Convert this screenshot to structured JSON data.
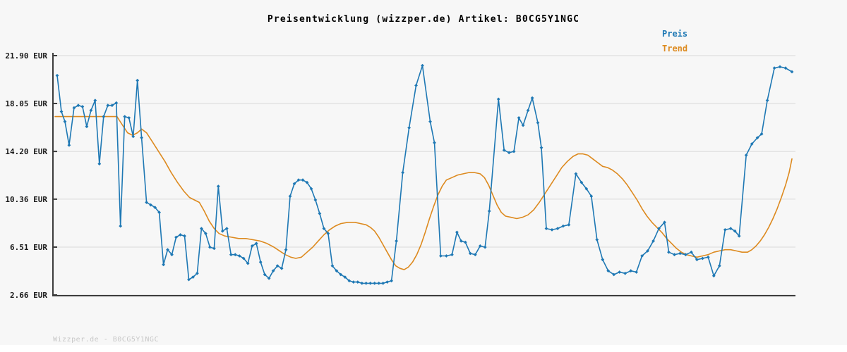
{
  "title": "Preisentwicklung (wizzper.de) Artikel: B0CG5Y1NGC",
  "legend": {
    "preis": "Preis",
    "trend": "Trend"
  },
  "watermark": "Wizzper.de - B0CG5Y1NGC",
  "colors": {
    "price": "#1e78b4",
    "trend": "#dd8a1f",
    "grid": "#d8d8d8",
    "axis": "#3c3c3c",
    "background": "#f7f7f7",
    "footer": "#ffffff",
    "title": "#000000",
    "tick_label": "#1a1a1a",
    "watermark": "#c8c8c8"
  },
  "chart_data": {
    "type": "line",
    "title": "Preisentwicklung (wizzper.de) Artikel: B0CG5Y1NGC",
    "ylabel": "EUR",
    "ylim": [
      2.66,
      21.9
    ],
    "yticks": [
      21.9,
      18.05,
      14.2,
      10.36,
      6.51,
      2.66
    ],
    "ytick_labels": [
      "21.90 EUR",
      "18.05 EUR",
      "14.20 EUR",
      "10.36 EUR",
      "6.51 EUR",
      "2.66 EUR"
    ],
    "x_range": [
      0,
      1047
    ],
    "x_tick_labels": [],
    "grid": "horizontal",
    "legend_position": "top-right",
    "series": [
      {
        "name": "Preis",
        "color": "#1e78b4",
        "marker": "diamond",
        "points": [
          [
            3,
            20.3
          ],
          [
            9,
            17.4
          ],
          [
            14,
            16.6
          ],
          [
            20,
            14.7
          ],
          [
            27,
            17.7
          ],
          [
            33,
            17.9
          ],
          [
            39,
            17.8
          ],
          [
            45,
            16.2
          ],
          [
            51,
            17.5
          ],
          [
            57,
            18.3
          ],
          [
            63,
            13.2
          ],
          [
            69,
            17.0
          ],
          [
            75,
            17.9
          ],
          [
            81,
            17.9
          ],
          [
            87,
            18.1
          ],
          [
            93,
            8.2
          ],
          [
            99,
            17.0
          ],
          [
            105,
            16.9
          ],
          [
            111,
            15.4
          ],
          [
            117,
            19.9
          ],
          [
            123,
            15.3
          ],
          [
            130,
            10.1
          ],
          [
            136,
            9.9
          ],
          [
            142,
            9.7
          ],
          [
            148,
            9.3
          ],
          [
            154,
            5.1
          ],
          [
            160,
            6.3
          ],
          [
            166,
            5.9
          ],
          [
            172,
            7.3
          ],
          [
            178,
            7.5
          ],
          [
            184,
            7.4
          ],
          [
            190,
            3.9
          ],
          [
            196,
            4.1
          ],
          [
            202,
            4.4
          ],
          [
            208,
            8.0
          ],
          [
            214,
            7.6
          ],
          [
            220,
            6.5
          ],
          [
            226,
            6.4
          ],
          [
            232,
            11.4
          ],
          [
            238,
            7.8
          ],
          [
            244,
            8.0
          ],
          [
            250,
            5.9
          ],
          [
            256,
            5.9
          ],
          [
            262,
            5.8
          ],
          [
            268,
            5.6
          ],
          [
            274,
            5.2
          ],
          [
            280,
            6.6
          ],
          [
            286,
            6.8
          ],
          [
            292,
            5.3
          ],
          [
            298,
            4.3
          ],
          [
            304,
            4.0
          ],
          [
            310,
            4.6
          ],
          [
            316,
            5.0
          ],
          [
            322,
            4.8
          ],
          [
            328,
            6.3
          ],
          [
            334,
            10.6
          ],
          [
            340,
            11.6
          ],
          [
            346,
            11.9
          ],
          [
            352,
            11.9
          ],
          [
            358,
            11.7
          ],
          [
            364,
            11.2
          ],
          [
            370,
            10.3
          ],
          [
            376,
            9.2
          ],
          [
            382,
            8.0
          ],
          [
            388,
            7.6
          ],
          [
            394,
            5.0
          ],
          [
            400,
            4.6
          ],
          [
            406,
            4.3
          ],
          [
            412,
            4.1
          ],
          [
            418,
            3.8
          ],
          [
            424,
            3.7
          ],
          [
            430,
            3.7
          ],
          [
            436,
            3.6
          ],
          [
            442,
            3.6
          ],
          [
            448,
            3.6
          ],
          [
            454,
            3.6
          ],
          [
            460,
            3.6
          ],
          [
            466,
            3.6
          ],
          [
            472,
            3.7
          ],
          [
            478,
            3.8
          ],
          [
            485,
            7.0
          ],
          [
            494,
            12.5
          ],
          [
            503,
            16.1
          ],
          [
            513,
            19.5
          ],
          [
            522,
            21.1
          ],
          [
            533,
            16.6
          ],
          [
            539,
            14.9
          ],
          [
            548,
            5.8
          ],
          [
            556,
            5.8
          ],
          [
            564,
            5.9
          ],
          [
            571,
            7.7
          ],
          [
            577,
            7.0
          ],
          [
            583,
            6.9
          ],
          [
            590,
            6.0
          ],
          [
            597,
            5.9
          ],
          [
            604,
            6.6
          ],
          [
            611,
            6.5
          ],
          [
            617,
            9.4
          ],
          [
            630,
            18.4
          ],
          [
            638,
            14.3
          ],
          [
            645,
            14.1
          ],
          [
            652,
            14.2
          ],
          [
            659,
            16.9
          ],
          [
            665,
            16.3
          ],
          [
            672,
            17.5
          ],
          [
            678,
            18.5
          ],
          [
            686,
            16.5
          ],
          [
            691,
            14.5
          ],
          [
            698,
            8.0
          ],
          [
            706,
            7.9
          ],
          [
            714,
            8.0
          ],
          [
            722,
            8.2
          ],
          [
            730,
            8.3
          ],
          [
            740,
            12.4
          ],
          [
            748,
            11.7
          ],
          [
            755,
            11.2
          ],
          [
            762,
            10.6
          ],
          [
            770,
            7.1
          ],
          [
            778,
            5.5
          ],
          [
            786,
            4.6
          ],
          [
            794,
            4.3
          ],
          [
            802,
            4.5
          ],
          [
            810,
            4.4
          ],
          [
            818,
            4.6
          ],
          [
            826,
            4.5
          ],
          [
            834,
            5.8
          ],
          [
            842,
            6.2
          ],
          [
            850,
            7.0
          ],
          [
            858,
            8.0
          ],
          [
            866,
            8.5
          ],
          [
            872,
            6.1
          ],
          [
            880,
            5.9
          ],
          [
            888,
            6.0
          ],
          [
            896,
            5.9
          ],
          [
            904,
            6.1
          ],
          [
            912,
            5.5
          ],
          [
            920,
            5.6
          ],
          [
            928,
            5.7
          ],
          [
            936,
            4.2
          ],
          [
            944,
            5.0
          ],
          [
            952,
            7.9
          ],
          [
            960,
            8.0
          ],
          [
            966,
            7.8
          ],
          [
            972,
            7.4
          ],
          [
            982,
            13.9
          ],
          [
            990,
            14.8
          ],
          [
            998,
            15.3
          ],
          [
            1004,
            15.6
          ],
          [
            1012,
            18.3
          ],
          [
            1022,
            20.9
          ],
          [
            1030,
            21.0
          ],
          [
            1038,
            20.9
          ],
          [
            1047,
            20.6
          ]
        ]
      },
      {
        "name": "Trend",
        "color": "#dd8a1f",
        "marker": "none",
        "points": [
          [
            0,
            17.0
          ],
          [
            30,
            17.0
          ],
          [
            60,
            17.0
          ],
          [
            88,
            17.0
          ],
          [
            96,
            16.3
          ],
          [
            103,
            15.7
          ],
          [
            110,
            15.5
          ],
          [
            117,
            15.7
          ],
          [
            123,
            16.0
          ],
          [
            130,
            15.7
          ],
          [
            138,
            15.0
          ],
          [
            147,
            14.2
          ],
          [
            156,
            13.4
          ],
          [
            165,
            12.5
          ],
          [
            174,
            11.7
          ],
          [
            183,
            11.0
          ],
          [
            191,
            10.5
          ],
          [
            198,
            10.3
          ],
          [
            205,
            10.1
          ],
          [
            212,
            9.4
          ],
          [
            219,
            8.6
          ],
          [
            226,
            8.0
          ],
          [
            233,
            7.6
          ],
          [
            241,
            7.4
          ],
          [
            251,
            7.3
          ],
          [
            261,
            7.2
          ],
          [
            271,
            7.2
          ],
          [
            281,
            7.1
          ],
          [
            291,
            7.0
          ],
          [
            301,
            6.8
          ],
          [
            311,
            6.5
          ],
          [
            319,
            6.2
          ],
          [
            327,
            5.9
          ],
          [
            335,
            5.7
          ],
          [
            342,
            5.6
          ],
          [
            350,
            5.7
          ],
          [
            358,
            6.1
          ],
          [
            366,
            6.5
          ],
          [
            374,
            7.0
          ],
          [
            382,
            7.5
          ],
          [
            390,
            7.9
          ],
          [
            398,
            8.2
          ],
          [
            406,
            8.4
          ],
          [
            416,
            8.5
          ],
          [
            426,
            8.5
          ],
          [
            434,
            8.4
          ],
          [
            442,
            8.3
          ],
          [
            448,
            8.1
          ],
          [
            454,
            7.8
          ],
          [
            460,
            7.3
          ],
          [
            466,
            6.7
          ],
          [
            472,
            6.1
          ],
          [
            478,
            5.5
          ],
          [
            484,
            5.0
          ],
          [
            490,
            4.8
          ],
          [
            496,
            4.7
          ],
          [
            502,
            4.9
          ],
          [
            508,
            5.3
          ],
          [
            514,
            5.9
          ],
          [
            520,
            6.7
          ],
          [
            526,
            7.7
          ],
          [
            532,
            8.8
          ],
          [
            538,
            9.8
          ],
          [
            544,
            10.7
          ],
          [
            550,
            11.4
          ],
          [
            556,
            11.9
          ],
          [
            564,
            12.1
          ],
          [
            572,
            12.3
          ],
          [
            580,
            12.4
          ],
          [
            588,
            12.5
          ],
          [
            596,
            12.5
          ],
          [
            604,
            12.4
          ],
          [
            610,
            12.1
          ],
          [
            616,
            11.5
          ],
          [
            622,
            10.7
          ],
          [
            628,
            9.9
          ],
          [
            634,
            9.3
          ],
          [
            640,
            9.0
          ],
          [
            648,
            8.9
          ],
          [
            656,
            8.8
          ],
          [
            664,
            8.9
          ],
          [
            672,
            9.1
          ],
          [
            680,
            9.5
          ],
          [
            688,
            10.1
          ],
          [
            696,
            10.8
          ],
          [
            704,
            11.5
          ],
          [
            712,
            12.2
          ],
          [
            720,
            12.9
          ],
          [
            728,
            13.4
          ],
          [
            736,
            13.8
          ],
          [
            743,
            14.0
          ],
          [
            750,
            14.0
          ],
          [
            757,
            13.9
          ],
          [
            764,
            13.6
          ],
          [
            771,
            13.3
          ],
          [
            778,
            13.0
          ],
          [
            785,
            12.9
          ],
          [
            792,
            12.7
          ],
          [
            799,
            12.4
          ],
          [
            806,
            12.0
          ],
          [
            813,
            11.5
          ],
          [
            820,
            10.9
          ],
          [
            827,
            10.3
          ],
          [
            834,
            9.6
          ],
          [
            841,
            9.0
          ],
          [
            848,
            8.5
          ],
          [
            855,
            8.1
          ],
          [
            862,
            7.7
          ],
          [
            869,
            7.2
          ],
          [
            876,
            6.8
          ],
          [
            883,
            6.4
          ],
          [
            890,
            6.1
          ],
          [
            897,
            5.9
          ],
          [
            904,
            5.8
          ],
          [
            912,
            5.7
          ],
          [
            920,
            5.8
          ],
          [
            928,
            5.9
          ],
          [
            936,
            6.1
          ],
          [
            944,
            6.2
          ],
          [
            952,
            6.3
          ],
          [
            960,
            6.3
          ],
          [
            968,
            6.2
          ],
          [
            976,
            6.1
          ],
          [
            984,
            6.1
          ],
          [
            990,
            6.3
          ],
          [
            996,
            6.6
          ],
          [
            1002,
            7.0
          ],
          [
            1008,
            7.5
          ],
          [
            1014,
            8.1
          ],
          [
            1020,
            8.8
          ],
          [
            1026,
            9.6
          ],
          [
            1032,
            10.5
          ],
          [
            1038,
            11.5
          ],
          [
            1043,
            12.5
          ],
          [
            1047,
            13.6
          ]
        ]
      }
    ]
  }
}
